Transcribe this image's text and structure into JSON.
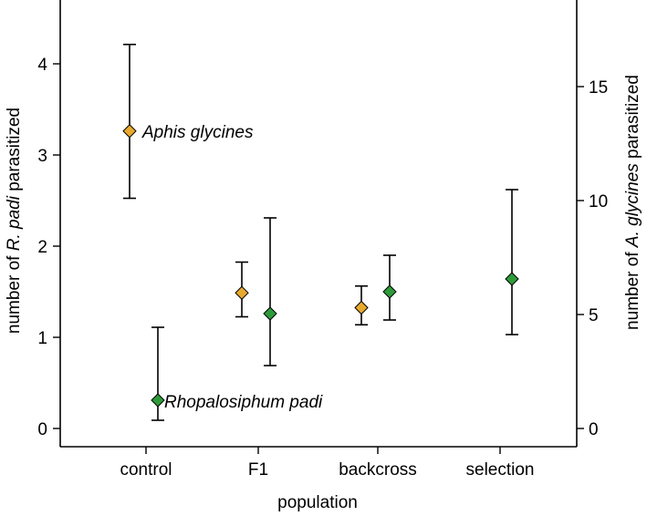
{
  "chart_data": {
    "type": "scatter",
    "xlabel": "population",
    "ylabel_left": [
      "number of ",
      "R. padi",
      " parasitized"
    ],
    "ylabel_right": [
      "number of ",
      "A. glycines",
      " parasitized"
    ],
    "categories": [
      "control",
      "F1",
      "backcross",
      "selection"
    ],
    "left_axis": {
      "range": [
        -0.2,
        4.7
      ],
      "ticks": [
        "0",
        "1",
        "2",
        "3",
        "4"
      ]
    },
    "right_axis": {
      "range": [
        -0.8,
        18.8
      ],
      "ticks": [
        "0",
        "5",
        "10",
        "15"
      ]
    },
    "series": [
      {
        "name": "Aphis glycines",
        "axis": "right",
        "color": "#E7A92E",
        "points": [
          {
            "category": "control",
            "mean": 13.05,
            "lower": 10.1,
            "upper": 16.85
          },
          {
            "category": "F1",
            "mean": 5.95,
            "lower": 4.9,
            "upper": 7.3
          },
          {
            "category": "backcross",
            "mean": 5.3,
            "lower": 4.55,
            "upper": 6.25
          }
        ]
      },
      {
        "name": "Rhopalosiphum padi",
        "axis": "left",
        "color": "#2E9B3A",
        "points": [
          {
            "category": "control",
            "mean": 0.31,
            "lower": 0.09,
            "upper": 1.11
          },
          {
            "category": "F1",
            "mean": 1.26,
            "lower": 0.69,
            "upper": 2.31
          },
          {
            "category": "backcross",
            "mean": 1.5,
            "lower": 1.19,
            "upper": 1.9
          },
          {
            "category": "selection",
            "mean": 1.64,
            "lower": 1.03,
            "upper": 2.62
          }
        ]
      }
    ],
    "annotations": [
      "Aphis glycines",
      "Rhopalosiphum padi"
    ]
  }
}
